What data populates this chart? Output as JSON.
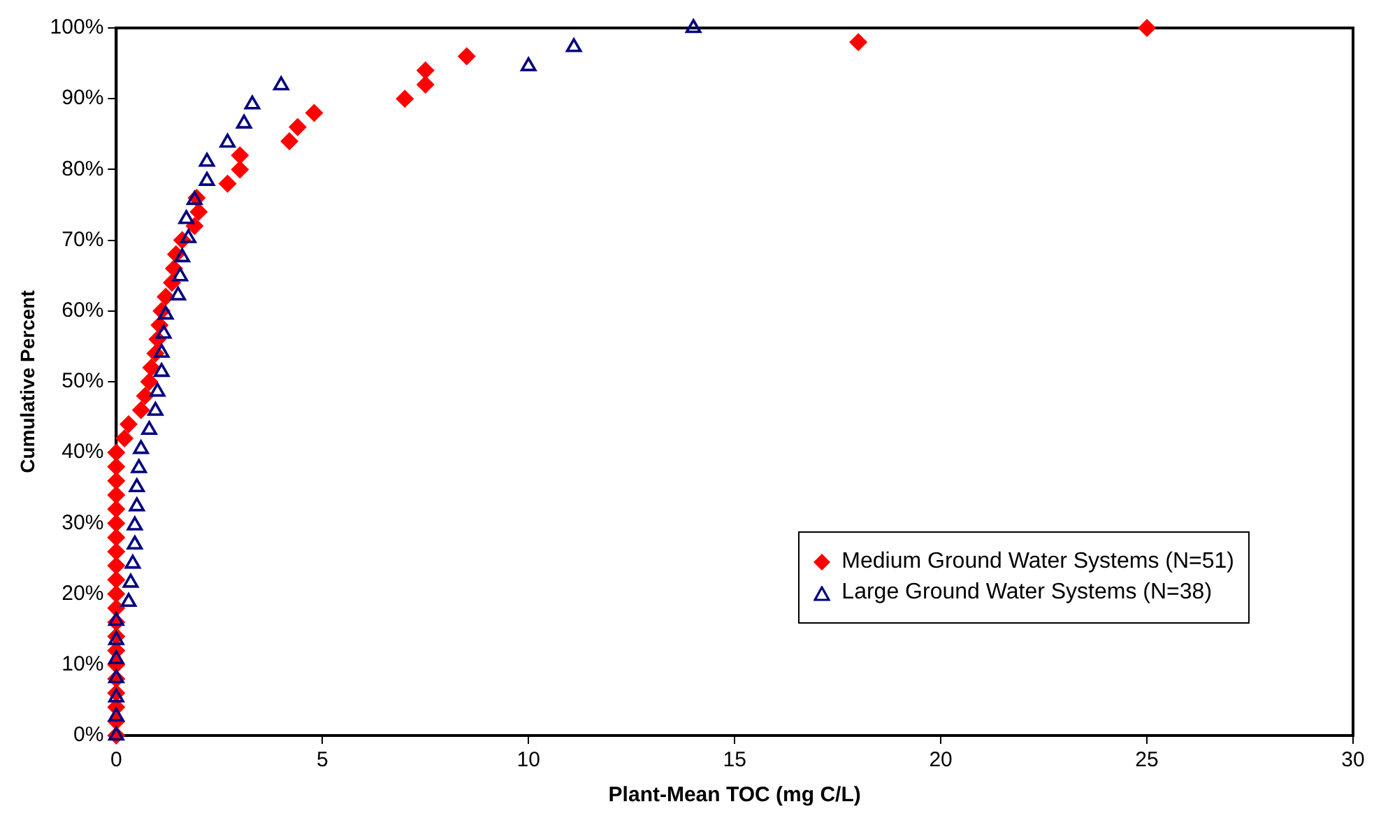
{
  "chart_data": {
    "type": "scatter",
    "xlabel": "Plant-Mean TOC (mg C/L)",
    "ylabel": "Cumulative Percent",
    "xlim": [
      0,
      30
    ],
    "xticks": [
      0,
      5,
      10,
      15,
      20,
      25,
      30
    ],
    "ylim": [
      0,
      100
    ],
    "yticks": [
      {
        "value": 0,
        "label": "0%"
      },
      {
        "value": 10,
        "label": "10%"
      },
      {
        "value": 20,
        "label": "20%"
      },
      {
        "value": 30,
        "label": "30%"
      },
      {
        "value": 40,
        "label": "40%"
      },
      {
        "value": 50,
        "label": "50%"
      },
      {
        "value": 60,
        "label": "60%"
      },
      {
        "value": 70,
        "label": "70%"
      },
      {
        "value": 80,
        "label": "80%"
      },
      {
        "value": 90,
        "label": "90%"
      },
      {
        "value": 100,
        "label": "100%"
      }
    ],
    "grid": false,
    "legend": "bottom right",
    "series": [
      {
        "name": "Medium Ground Water Systems (N=51)",
        "color": "#ff0000",
        "marker": "diamond",
        "x": [
          0,
          0,
          0,
          0,
          0,
          0,
          0,
          0,
          0,
          0,
          0,
          0,
          0,
          0,
          0,
          0,
          0,
          0,
          0,
          0,
          0,
          0.2,
          0.3,
          0.6,
          0.7,
          0.8,
          0.85,
          0.95,
          1.0,
          1.05,
          1.1,
          1.2,
          1.35,
          1.4,
          1.45,
          1.6,
          1.9,
          2.0,
          1.95,
          2.7,
          3.0,
          3.0,
          4.2,
          4.4,
          4.8,
          7.0,
          7.5,
          7.5,
          8.5,
          18,
          25
        ],
        "values": [
          0,
          2,
          4,
          6,
          8,
          10,
          12,
          14,
          16,
          18,
          20,
          22,
          24,
          26,
          28,
          30,
          32,
          34,
          36,
          38,
          40,
          42,
          44,
          46,
          48,
          50,
          52,
          54,
          56,
          58,
          60,
          62,
          64,
          66,
          68,
          70,
          72,
          74,
          76,
          78,
          80,
          82,
          84,
          86,
          88,
          90,
          92,
          94,
          96,
          98,
          100
        ]
      },
      {
        "name": "Large Ground Water Systems (N=38)",
        "color": "#000080",
        "marker": "triangle",
        "x": [
          0,
          0,
          0,
          0,
          0,
          0,
          0,
          0.3,
          0.35,
          0.4,
          0.45,
          0.45,
          0.5,
          0.5,
          0.55,
          0.6,
          0.8,
          0.95,
          1.0,
          1.1,
          1.1,
          1.15,
          1.2,
          1.5,
          1.55,
          1.6,
          1.75,
          1.7,
          1.9,
          2.2,
          2.2,
          2.7,
          3.1,
          3.3,
          4.0,
          10.0,
          11.1,
          14.0
        ],
        "values": [
          0,
          2.7,
          5.4,
          8.1,
          10.8,
          13.5,
          16.2,
          18.9,
          21.6,
          24.3,
          27.0,
          29.7,
          32.4,
          35.1,
          37.8,
          40.5,
          43.2,
          45.9,
          48.6,
          51.4,
          54.1,
          56.8,
          59.5,
          62.2,
          64.9,
          67.6,
          70.3,
          73.0,
          75.7,
          78.4,
          81.1,
          83.8,
          86.5,
          89.2,
          91.9,
          94.6,
          97.3,
          100
        ]
      }
    ]
  }
}
